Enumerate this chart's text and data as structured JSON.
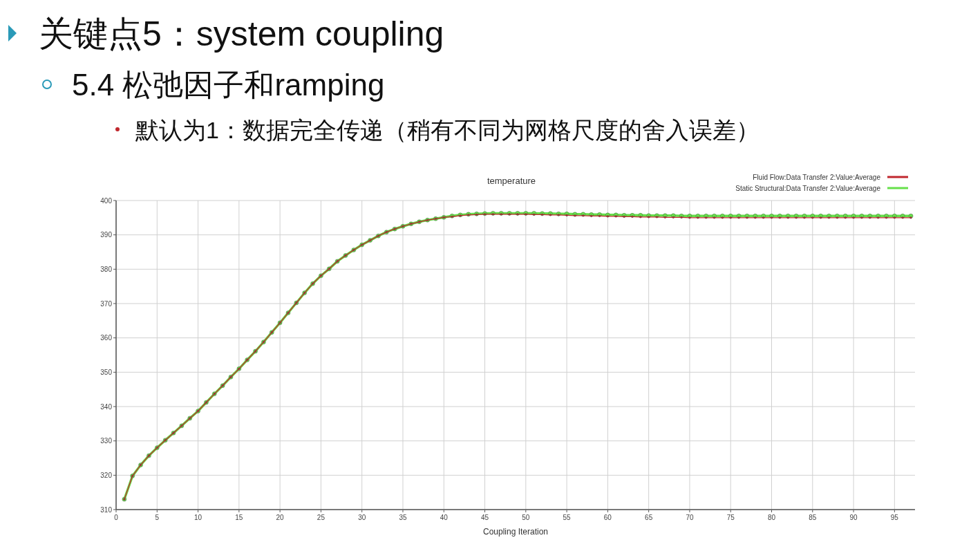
{
  "chart_data": {
    "type": "line",
    "title": "关键点5：system coupling",
    "subtitle": "5.4 松弛因子和ramping",
    "annotations": [
      "默认为1：数据完全传递（稍有不同为网格尺度的舍入误差）",
      "temperature"
    ],
    "xlabel": "Coupling Iteration",
    "xlim": [
      0,
      97.5
    ],
    "ylim": [
      310,
      400
    ],
    "xticks": [
      0,
      5,
      10,
      15,
      20,
      25,
      30,
      35,
      40,
      45,
      50,
      55,
      60,
      65,
      70,
      75,
      80,
      85,
      90,
      95
    ],
    "yticks": [
      310,
      320,
      330,
      340,
      350,
      360,
      370,
      380,
      390,
      400
    ],
    "grid": true,
    "legend": "top right",
    "marker": "circle",
    "x": [
      1,
      2,
      3,
      4,
      5,
      6,
      7,
      8,
      9,
      10,
      11,
      12,
      13,
      14,
      15,
      16,
      17,
      18,
      19,
      20,
      21,
      22,
      23,
      24,
      25,
      26,
      27,
      28,
      29,
      30,
      31,
      32,
      33,
      34,
      35,
      36,
      37,
      38,
      39,
      40,
      41,
      42,
      43,
      44,
      45,
      46,
      47,
      48,
      49,
      50,
      51,
      52,
      53,
      54,
      55,
      56,
      57,
      58,
      59,
      60,
      61,
      62,
      63,
      64,
      65,
      66,
      67,
      68,
      69,
      70,
      71,
      72,
      73,
      74,
      75,
      76,
      77,
      78,
      79,
      80,
      81,
      82,
      83,
      84,
      85,
      86,
      87,
      88,
      89,
      90,
      91,
      92,
      93,
      94,
      95,
      96,
      97
    ],
    "series": [
      {
        "name": "Fluid Flow:Data Transfer 2:Value:Average",
        "color": "#c0272d",
        "values": [
          313,
          319.8,
          323,
          325.7,
          328,
          330.2,
          332.3,
          334.4,
          336.6,
          338.7,
          341.2,
          343.7,
          346.1,
          348.6,
          351,
          353.6,
          356.1,
          358.8,
          361.6,
          364.4,
          367.3,
          370.2,
          373.1,
          375.8,
          378.1,
          380.1,
          382.3,
          384,
          385.6,
          387.1,
          388.4,
          389.7,
          390.8,
          391.7,
          392.5,
          393.2,
          393.8,
          394.3,
          394.7,
          395.1,
          395.3,
          395.6,
          395.8,
          395.9,
          396.0,
          396.0,
          396.0,
          396.0,
          396.0,
          396.0,
          395.9,
          395.9,
          395.8,
          395.8,
          395.7,
          395.6,
          395.6,
          395.5,
          395.5,
          395.4,
          395.4,
          395.3,
          395.3,
          395.2,
          395.2,
          395.2,
          395.1,
          395.1,
          395.1,
          395.0,
          395.0,
          395.0,
          395.0,
          395.0,
          395.0,
          395.0,
          395.0,
          395.0,
          395.0,
          395.0,
          395.0,
          395.0,
          395.0,
          395.0,
          395.0,
          395.0,
          395.0,
          395.0,
          395.0,
          395.0,
          395.0,
          395.0,
          395.0,
          395.0,
          395.0,
          395.0,
          395.0
        ]
      },
      {
        "name": "Static Structural:Data Transfer 2:Value:Average",
        "color": "#66e04a",
        "values": [
          313,
          319.8,
          323,
          325.7,
          328,
          330.2,
          332.3,
          334.4,
          336.6,
          338.7,
          341.2,
          343.7,
          346.1,
          348.6,
          351,
          353.6,
          356.1,
          358.8,
          361.6,
          364.4,
          367.3,
          370.2,
          373.1,
          375.8,
          378.1,
          380.1,
          382.3,
          384,
          385.6,
          387.1,
          388.4,
          389.7,
          390.8,
          391.7,
          392.5,
          393.2,
          393.8,
          394.3,
          394.7,
          395.1,
          395.5,
          395.8,
          396.0,
          396.1,
          396.2,
          396.3,
          396.3,
          396.3,
          396.3,
          396.3,
          396.3,
          396.2,
          396.2,
          396.1,
          396.1,
          396.0,
          396.0,
          395.9,
          395.9,
          395.8,
          395.8,
          395.7,
          395.7,
          395.7,
          395.6,
          395.6,
          395.6,
          395.6,
          395.5,
          395.5,
          395.5,
          395.5,
          395.5,
          395.5,
          395.5,
          395.5,
          395.5,
          395.5,
          395.5,
          395.5,
          395.5,
          395.5,
          395.5,
          395.5,
          395.5,
          395.5,
          395.5,
          395.5,
          395.5,
          395.5,
          395.5,
          395.5,
          395.5,
          395.5,
          395.5,
          395.5,
          395.5
        ]
      }
    ]
  }
}
